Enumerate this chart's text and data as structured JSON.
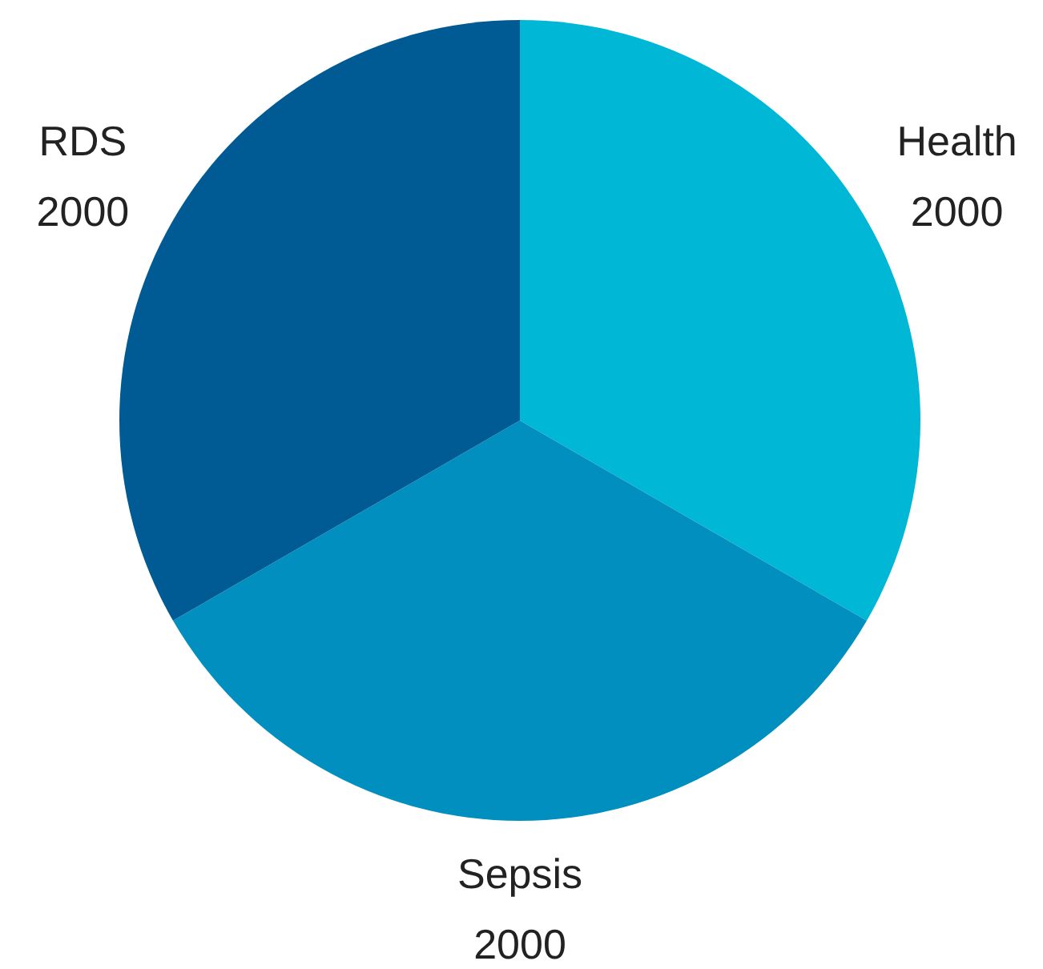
{
  "chart_data": {
    "type": "pie",
    "categories": [
      "Health",
      "Sepsis",
      "RDS"
    ],
    "values": [
      2000,
      2000,
      2000
    ],
    "colors": [
      "#00b7d6",
      "#008fbe",
      "#005a93"
    ],
    "data_labels": true
  }
}
